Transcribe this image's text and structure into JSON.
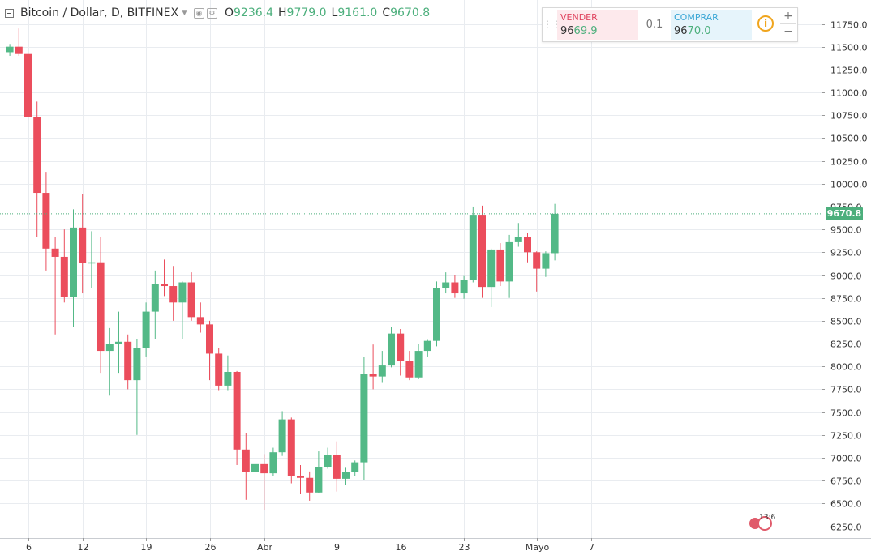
{
  "header": {
    "symbol": "Bitcoin / Dollar, D, BITFINEX",
    "o_label": "O",
    "o_value": "9236.4",
    "h_label": "H",
    "h_value": "9779.0",
    "l_label": "L",
    "l_value": "9161.0",
    "c_label": "C",
    "c_value": "9670.8"
  },
  "trade_panel": {
    "sell_label": "VENDER",
    "sell_price_head": "96",
    "sell_price_tail": "69.9",
    "size": "0.1",
    "buy_label": "COMPRAR",
    "buy_price_head": "96",
    "buy_price_tail": "70.0",
    "info_icon": "i",
    "plus": "+",
    "minus": "−"
  },
  "last_price_tag": "9670.8",
  "event_badge": "13",
  "event_badge_extra": "6",
  "colors": {
    "up": "#53b987",
    "down": "#eb4d5c",
    "grid": "#e9ecf0",
    "axis_text": "#333333",
    "last_line": "#4caf7c"
  },
  "chart_data": {
    "type": "candlestick",
    "title": "Bitcoin / Dollar, D, BITFINEX",
    "y_ticks": [
      "11750.0",
      "11500.0",
      "11250.0",
      "11000.0",
      "10750.0",
      "10500.0",
      "10250.0",
      "10000.0",
      "9750.0",
      "9500.0",
      "9250.0",
      "9000.0",
      "8750.0",
      "8500.0",
      "8250.0",
      "8000.0",
      "7750.0",
      "7500.0",
      "7250.0",
      "7000.0",
      "6750.0",
      "6500.0",
      "6250.0"
    ],
    "x_ticks": [
      {
        "label": "6",
        "date": "2018-03-06"
      },
      {
        "label": "12",
        "date": "2018-03-12"
      },
      {
        "label": "19",
        "date": "2018-03-19"
      },
      {
        "label": "26",
        "date": "2018-03-26"
      },
      {
        "label": "Abr",
        "date": "2018-04-01"
      },
      {
        "label": "9",
        "date": "2018-04-09"
      },
      {
        "label": "16",
        "date": "2018-04-16"
      },
      {
        "label": "23",
        "date": "2018-04-23"
      },
      {
        "label": "Mayo",
        "date": "2018-05-01"
      },
      {
        "label": "7",
        "date": "2018-05-07"
      }
    ],
    "ylim": [
      6150,
      11900
    ],
    "last_price": 9670.8,
    "grid": true,
    "candles": [
      {
        "date": "2018-03-04",
        "open": 11440,
        "high": 11530,
        "low": 11400,
        "close": 11500
      },
      {
        "date": "2018-03-05",
        "open": 11500,
        "high": 11700,
        "low": 11400,
        "close": 11420
      },
      {
        "date": "2018-03-06",
        "open": 11420,
        "high": 11460,
        "low": 10600,
        "close": 10730
      },
      {
        "date": "2018-03-07",
        "open": 10730,
        "high": 10900,
        "low": 9420,
        "close": 9900
      },
      {
        "date": "2018-03-08",
        "open": 9900,
        "high": 10130,
        "low": 9050,
        "close": 9290
      },
      {
        "date": "2018-03-09",
        "open": 9290,
        "high": 9420,
        "low": 8350,
        "close": 9200
      },
      {
        "date": "2018-03-10",
        "open": 9200,
        "high": 9500,
        "low": 8700,
        "close": 8760
      },
      {
        "date": "2018-03-11",
        "open": 8760,
        "high": 9720,
        "low": 8430,
        "close": 9520
      },
      {
        "date": "2018-03-12",
        "open": 9520,
        "high": 9890,
        "low": 8800,
        "close": 9130
      },
      {
        "date": "2018-03-13",
        "open": 9130,
        "high": 9480,
        "low": 8860,
        "close": 9140
      },
      {
        "date": "2018-03-14",
        "open": 9140,
        "high": 9420,
        "low": 7930,
        "close": 8170
      },
      {
        "date": "2018-03-15",
        "open": 8170,
        "high": 8420,
        "low": 7680,
        "close": 8250
      },
      {
        "date": "2018-03-16",
        "open": 8250,
        "high": 8600,
        "low": 7930,
        "close": 8270
      },
      {
        "date": "2018-03-17",
        "open": 8270,
        "high": 8350,
        "low": 7750,
        "close": 7850
      },
      {
        "date": "2018-03-18",
        "open": 7850,
        "high": 8300,
        "low": 7250,
        "close": 8200
      },
      {
        "date": "2018-03-19",
        "open": 8200,
        "high": 8700,
        "low": 8100,
        "close": 8600
      },
      {
        "date": "2018-03-20",
        "open": 8600,
        "high": 9050,
        "low": 8300,
        "close": 8900
      },
      {
        "date": "2018-03-21",
        "open": 8900,
        "high": 9170,
        "low": 8770,
        "close": 8880
      },
      {
        "date": "2018-03-22",
        "open": 8880,
        "high": 9100,
        "low": 8500,
        "close": 8700
      },
      {
        "date": "2018-03-23",
        "open": 8700,
        "high": 8930,
        "low": 8300,
        "close": 8920
      },
      {
        "date": "2018-03-24",
        "open": 8920,
        "high": 9030,
        "low": 8500,
        "close": 8540
      },
      {
        "date": "2018-03-25",
        "open": 8540,
        "high": 8700,
        "low": 8370,
        "close": 8460
      },
      {
        "date": "2018-03-26",
        "open": 8460,
        "high": 8500,
        "low": 7850,
        "close": 8140
      },
      {
        "date": "2018-03-27",
        "open": 8140,
        "high": 8200,
        "low": 7740,
        "close": 7790
      },
      {
        "date": "2018-03-28",
        "open": 7790,
        "high": 8120,
        "low": 7740,
        "close": 7940
      },
      {
        "date": "2018-03-29",
        "open": 7940,
        "high": 7950,
        "low": 6920,
        "close": 7090
      },
      {
        "date": "2018-03-30",
        "open": 7090,
        "high": 7270,
        "low": 6540,
        "close": 6840
      },
      {
        "date": "2018-03-31",
        "open": 6840,
        "high": 7160,
        "low": 6820,
        "close": 6930
      },
      {
        "date": "2018-04-01",
        "open": 6930,
        "high": 7040,
        "low": 6430,
        "close": 6830
      },
      {
        "date": "2018-04-02",
        "open": 6830,
        "high": 7110,
        "low": 6800,
        "close": 7060
      },
      {
        "date": "2018-04-03",
        "open": 7060,
        "high": 7510,
        "low": 7020,
        "close": 7420
      },
      {
        "date": "2018-04-04",
        "open": 7420,
        "high": 7440,
        "low": 6720,
        "close": 6800
      },
      {
        "date": "2018-04-05",
        "open": 6800,
        "high": 6920,
        "low": 6600,
        "close": 6780
      },
      {
        "date": "2018-04-06",
        "open": 6780,
        "high": 6850,
        "low": 6530,
        "close": 6620
      },
      {
        "date": "2018-04-07",
        "open": 6620,
        "high": 7070,
        "low": 6610,
        "close": 6900
      },
      {
        "date": "2018-04-08",
        "open": 6900,
        "high": 7110,
        "low": 6880,
        "close": 7030
      },
      {
        "date": "2018-04-09",
        "open": 7030,
        "high": 7180,
        "low": 6630,
        "close": 6770
      },
      {
        "date": "2018-04-10",
        "open": 6770,
        "high": 6890,
        "low": 6700,
        "close": 6840
      },
      {
        "date": "2018-04-11",
        "open": 6840,
        "high": 6970,
        "low": 6800,
        "close": 6950
      },
      {
        "date": "2018-04-12",
        "open": 6950,
        "high": 8100,
        "low": 6760,
        "close": 7920
      },
      {
        "date": "2018-04-13",
        "open": 7920,
        "high": 8240,
        "low": 7750,
        "close": 7890
      },
      {
        "date": "2018-04-14",
        "open": 7890,
        "high": 8170,
        "low": 7820,
        "close": 8010
      },
      {
        "date": "2018-04-15",
        "open": 8010,
        "high": 8430,
        "low": 7990,
        "close": 8360
      },
      {
        "date": "2018-04-16",
        "open": 8360,
        "high": 8410,
        "low": 7900,
        "close": 8060
      },
      {
        "date": "2018-04-17",
        "open": 8060,
        "high": 8170,
        "low": 7850,
        "close": 7880
      },
      {
        "date": "2018-04-18",
        "open": 7880,
        "high": 8250,
        "low": 7860,
        "close": 8170
      },
      {
        "date": "2018-04-19",
        "open": 8170,
        "high": 8290,
        "low": 8100,
        "close": 8280
      },
      {
        "date": "2018-04-20",
        "open": 8280,
        "high": 8930,
        "low": 8220,
        "close": 8860
      },
      {
        "date": "2018-04-21",
        "open": 8860,
        "high": 9030,
        "low": 8800,
        "close": 8920
      },
      {
        "date": "2018-04-22",
        "open": 8920,
        "high": 9000,
        "low": 8750,
        "close": 8800
      },
      {
        "date": "2018-04-23",
        "open": 8800,
        "high": 8990,
        "low": 8740,
        "close": 8950
      },
      {
        "date": "2018-04-24",
        "open": 8950,
        "high": 9750,
        "low": 8920,
        "close": 9660
      },
      {
        "date": "2018-04-25",
        "open": 9660,
        "high": 9760,
        "low": 8750,
        "close": 8870
      },
      {
        "date": "2018-04-26",
        "open": 8870,
        "high": 9290,
        "low": 8650,
        "close": 9280
      },
      {
        "date": "2018-04-27",
        "open": 9280,
        "high": 9350,
        "low": 8880,
        "close": 8930
      },
      {
        "date": "2018-04-28",
        "open": 8930,
        "high": 9440,
        "low": 8750,
        "close": 9360
      },
      {
        "date": "2018-04-29",
        "open": 9360,
        "high": 9570,
        "low": 9310,
        "close": 9420
      },
      {
        "date": "2018-04-30",
        "open": 9420,
        "high": 9460,
        "low": 9140,
        "close": 9250
      },
      {
        "date": "2018-05-01",
        "open": 9250,
        "high": 9260,
        "low": 8820,
        "close": 9070
      },
      {
        "date": "2018-05-02",
        "open": 9070,
        "high": 9260,
        "low": 8980,
        "close": 9240
      },
      {
        "date": "2018-05-03",
        "open": 9240,
        "high": 9779,
        "low": 9161,
        "close": 9670.8
      }
    ]
  }
}
